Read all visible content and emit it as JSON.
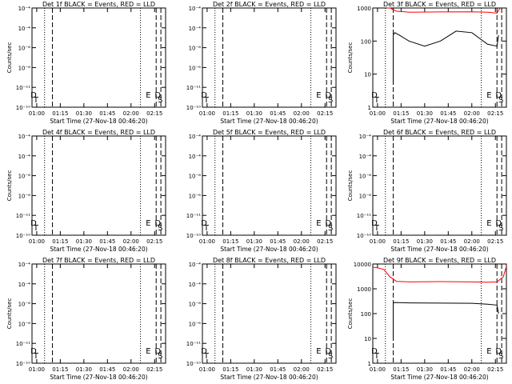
{
  "colors": {
    "events": "#000000",
    "lld": "#ff0000",
    "axes": "#000000"
  },
  "chart_data": [
    {
      "type": "line",
      "title": "Det 1f BLACK = Events, RED = LLD",
      "xlabel": "Start Time (27-Nov-18 00:46:20)",
      "ylabel": "Counts/sec",
      "xlim": [
        "00:57",
        "02:22"
      ],
      "ylog": true,
      "ylim": [
        1e-10,
        0.0001
      ],
      "x_ticks": [
        "01:00",
        "01:15",
        "01:30",
        "01:45",
        "02:00",
        "02:15"
      ],
      "y_ticks": [
        "10⁻¹⁰",
        "10⁻¹¹",
        "10⁻⁶",
        "10⁻⁸",
        "10⁻⁴",
        "10⁻⁴"
      ],
      "markers": [
        {
          "x": "00:58",
          "label": "D"
        },
        {
          "x": "00:58",
          "label": "T"
        },
        {
          "x": "02:11",
          "label": "E"
        },
        {
          "x": "02:17",
          "label": "S"
        },
        {
          "x": "02:17",
          "label": "D"
        }
      ],
      "vlines_dotted": [
        "01:05",
        "02:06"
      ],
      "vlines_dashed": [
        "01:10",
        "02:16",
        "02:19"
      ],
      "series": []
    },
    {
      "type": "line",
      "title": "Det 2f BLACK = Events, RED = LLD",
      "xlabel": "Start Time (27-Nov-18 00:46:20)",
      "ylabel": "",
      "xlim": [
        "00:57",
        "02:22"
      ],
      "ylog": true,
      "ylim": [
        1e-10,
        0.0001
      ],
      "x_ticks": [
        "01:00",
        "01:15",
        "01:30",
        "01:45",
        "02:00",
        "02:15"
      ],
      "y_ticks": [
        "10⁻¹⁰",
        "10⁻¹¹",
        "10⁻⁶",
        "10⁻⁸",
        "10⁻⁴",
        "10⁻⁴"
      ],
      "markers": [
        {
          "x": "00:58",
          "label": "D"
        },
        {
          "x": "00:58",
          "label": "T"
        },
        {
          "x": "02:11",
          "label": "E"
        },
        {
          "x": "02:17",
          "label": "S"
        },
        {
          "x": "02:17",
          "label": "D"
        }
      ],
      "vlines_dotted": [
        "01:05",
        "02:06"
      ],
      "vlines_dashed": [
        "01:10",
        "02:16",
        "02:19"
      ],
      "series": []
    },
    {
      "type": "line",
      "title": "Det 3f BLACK = Events, RED = LLD",
      "xlabel": "Start Time (27-Nov-18 00:46:20)",
      "ylabel": "Counts/sec",
      "xlim": [
        "00:57",
        "02:22"
      ],
      "ylog": true,
      "ylim": [
        1,
        1000
      ],
      "x_ticks": [
        "01:00",
        "01:15",
        "01:30",
        "01:45",
        "02:00",
        "02:15"
      ],
      "y_ticks": [
        "1",
        "10",
        "100",
        "1000"
      ],
      "markers": [
        {
          "x": "00:58",
          "label": "D"
        },
        {
          "x": "00:58",
          "label": "T"
        },
        {
          "x": "02:11",
          "label": "E"
        },
        {
          "x": "02:17",
          "label": "S"
        },
        {
          "x": "02:17",
          "label": "D"
        }
      ],
      "vlines_dotted": [
        "01:05",
        "02:06"
      ],
      "vlines_dashed": [
        "01:10",
        "02:16",
        "02:19"
      ],
      "series": [
        {
          "name": "Events",
          "color": "#000000",
          "x": [
            "01:10",
            "01:10",
            "01:11",
            "01:14",
            "01:20",
            "01:30",
            "01:40",
            "01:50",
            "02:00",
            "02:10",
            "02:16",
            "02:17"
          ],
          "y": [
            5,
            150,
            180,
            150,
            100,
            70,
            100,
            200,
            180,
            80,
            70,
            150
          ]
        },
        {
          "name": "LLD",
          "color": "#ff0000",
          "x": [
            "01:06",
            "01:08",
            "01:12",
            "01:20",
            "01:40",
            "02:00",
            "02:10",
            "02:16",
            "02:18"
          ],
          "y": [
            1000,
            1000,
            800,
            750,
            760,
            770,
            750,
            700,
            1000
          ]
        }
      ]
    },
    {
      "type": "line",
      "title": "Det 4f BLACK = Events, RED = LLD",
      "xlabel": "Start Time (27-Nov-18 00:46:20)",
      "ylabel": "Counts/sec",
      "xlim": [
        "00:57",
        "02:22"
      ],
      "ylog": true,
      "ylim": [
        1e-10,
        0.0001
      ],
      "x_ticks": [
        "01:00",
        "01:15",
        "01:30",
        "01:45",
        "02:00",
        "02:15"
      ],
      "y_ticks": [
        "10⁻¹⁰",
        "10⁻¹¹",
        "10⁻⁶",
        "10⁻⁸",
        "10⁻⁴",
        "10⁻⁴"
      ],
      "markers": [
        {
          "x": "00:58",
          "label": "D"
        },
        {
          "x": "00:58",
          "label": "T"
        },
        {
          "x": "02:11",
          "label": "E"
        },
        {
          "x": "02:17",
          "label": "S"
        },
        {
          "x": "02:17",
          "label": "D"
        }
      ],
      "vlines_dotted": [
        "01:05",
        "02:06"
      ],
      "vlines_dashed": [
        "01:10",
        "02:16",
        "02:19"
      ],
      "series": []
    },
    {
      "type": "line",
      "title": "Det 5f BLACK = Events, RED = LLD",
      "xlabel": "Start Time (27-Nov-18 00:46:20)",
      "ylabel": "",
      "xlim": [
        "00:57",
        "02:22"
      ],
      "ylog": true,
      "ylim": [
        1e-10,
        0.0001
      ],
      "x_ticks": [
        "01:00",
        "01:15",
        "01:30",
        "01:45",
        "02:00",
        "02:15"
      ],
      "y_ticks": [
        "10⁻¹⁰",
        "10⁻¹¹",
        "10⁻⁶",
        "10⁻⁸",
        "10⁻⁴",
        "10⁻⁴"
      ],
      "markers": [
        {
          "x": "00:58",
          "label": "D"
        },
        {
          "x": "00:58",
          "label": "T"
        },
        {
          "x": "02:11",
          "label": "E"
        },
        {
          "x": "02:17",
          "label": "S"
        },
        {
          "x": "02:17",
          "label": "D"
        }
      ],
      "vlines_dotted": [
        "01:05",
        "02:06"
      ],
      "vlines_dashed": [
        "01:10",
        "02:16",
        "02:19"
      ],
      "series": []
    },
    {
      "type": "line",
      "title": "Det 6f BLACK = Events, RED = LLD",
      "xlabel": "Start Time (27-Nov-18 00:46:20)",
      "ylabel": "Counts/sec",
      "xlim": [
        "00:57",
        "02:22"
      ],
      "ylog": true,
      "ylim": [
        1e-10,
        0.0001
      ],
      "x_ticks": [
        "01:00",
        "01:15",
        "01:30",
        "01:45",
        "02:00",
        "02:15"
      ],
      "y_ticks": [
        "10⁻¹⁰",
        "10⁻¹¹",
        "10⁻⁶",
        "10⁻⁸",
        "10⁻⁴",
        "10⁻⁴"
      ],
      "markers": [
        {
          "x": "00:58",
          "label": "D"
        },
        {
          "x": "00:58",
          "label": "T"
        },
        {
          "x": "02:11",
          "label": "E"
        },
        {
          "x": "02:17",
          "label": "S"
        },
        {
          "x": "02:17",
          "label": "D"
        }
      ],
      "vlines_dotted": [
        "01:05",
        "02:06"
      ],
      "vlines_dashed": [
        "01:10",
        "02:16",
        "02:19"
      ],
      "series": []
    },
    {
      "type": "line",
      "title": "Det 7f BLACK = Events, RED = LLD",
      "xlabel": "Start Time (27-Nov-18 00:46:20)",
      "ylabel": "Counts/sec",
      "xlim": [
        "00:57",
        "02:22"
      ],
      "ylog": true,
      "ylim": [
        1e-10,
        0.0001
      ],
      "x_ticks": [
        "01:00",
        "01:15",
        "01:30",
        "01:45",
        "02:00",
        "02:15"
      ],
      "y_ticks": [
        "10⁻¹⁰",
        "10⁻¹¹",
        "10⁻⁶",
        "10⁻⁸",
        "10⁻⁴",
        "10⁻⁴"
      ],
      "markers": [
        {
          "x": "00:58",
          "label": "D"
        },
        {
          "x": "00:58",
          "label": "T"
        },
        {
          "x": "02:11",
          "label": "E"
        },
        {
          "x": "02:17",
          "label": "S"
        },
        {
          "x": "02:17",
          "label": "D"
        }
      ],
      "vlines_dotted": [
        "01:05",
        "02:06"
      ],
      "vlines_dashed": [
        "01:10",
        "02:16",
        "02:19"
      ],
      "series": []
    },
    {
      "type": "line",
      "title": "Det 8f BLACK = Events, RED = LLD",
      "xlabel": "Start Time (27-Nov-18 00:46:20)",
      "ylabel": "",
      "xlim": [
        "00:57",
        "02:22"
      ],
      "ylog": true,
      "ylim": [
        1e-10,
        0.0001
      ],
      "x_ticks": [
        "01:00",
        "01:15",
        "01:30",
        "01:45",
        "02:00",
        "02:15"
      ],
      "y_ticks": [
        "10⁻¹⁰",
        "10⁻¹¹",
        "10⁻⁶",
        "10⁻⁸",
        "10⁻⁴",
        "10⁻⁴"
      ],
      "markers": [
        {
          "x": "00:58",
          "label": "D"
        },
        {
          "x": "00:58",
          "label": "T"
        },
        {
          "x": "02:11",
          "label": "E"
        },
        {
          "x": "02:17",
          "label": "S"
        },
        {
          "x": "02:17",
          "label": "D"
        }
      ],
      "vlines_dotted": [
        "01:05",
        "02:06"
      ],
      "vlines_dashed": [
        "01:10",
        "02:16",
        "02:19"
      ],
      "series": []
    },
    {
      "type": "line",
      "title": "Det 9f BLACK = Events, RED = LLD",
      "xlabel": "Start Time (27-Nov-18 00:46:20)",
      "ylabel": "Counts/sec",
      "xlim": [
        "00:57",
        "02:22"
      ],
      "ylog": true,
      "ylim": [
        1,
        10000
      ],
      "x_ticks": [
        "01:00",
        "01:15",
        "01:30",
        "01:45",
        "02:00",
        "02:15"
      ],
      "y_ticks": [
        "1",
        "10",
        "100",
        "1000",
        "10000"
      ],
      "markers": [
        {
          "x": "00:58",
          "label": "D"
        },
        {
          "x": "00:58",
          "label": "T"
        },
        {
          "x": "02:11",
          "label": "E"
        },
        {
          "x": "02:17",
          "label": "S"
        },
        {
          "x": "02:17",
          "label": "D"
        }
      ],
      "vlines_dotted": [
        "01:05",
        "02:06"
      ],
      "vlines_dashed": [
        "01:10",
        "02:16",
        "02:19"
      ],
      "series": [
        {
          "name": "Events",
          "color": "#000000",
          "x": [
            "01:10",
            "01:10",
            "01:11",
            "01:20",
            "01:40",
            "02:00",
            "02:10",
            "02:16",
            "02:17"
          ],
          "y": [
            10,
            270,
            280,
            270,
            265,
            260,
            240,
            220,
            100
          ]
        },
        {
          "name": "LLD",
          "color": "#ff0000",
          "x": [
            "00:57",
            "01:00",
            "01:04",
            "01:08",
            "01:12",
            "01:20",
            "01:40",
            "02:00",
            "02:10",
            "02:16",
            "02:20",
            "02:22"
          ],
          "y": [
            7500,
            7000,
            6000,
            3000,
            2000,
            1900,
            1950,
            1900,
            1850,
            1900,
            3000,
            8000
          ]
        }
      ]
    }
  ]
}
